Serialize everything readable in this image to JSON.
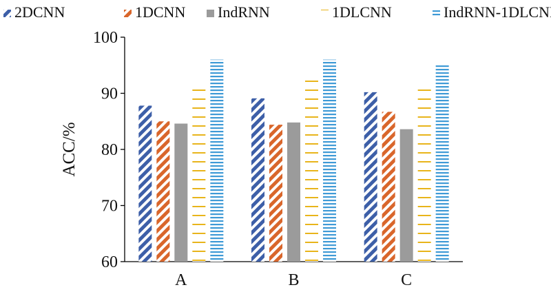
{
  "chart_data": {
    "type": "bar",
    "categories": [
      "A",
      "B",
      "C"
    ],
    "series": [
      {
        "name": "2DCNN",
        "values": [
          87.8,
          89.1,
          90.2
        ],
        "color": "#3d5fa8",
        "pattern": "diagonal-stripes"
      },
      {
        "name": "1DCNN",
        "values": [
          85.0,
          84.4,
          86.7
        ],
        "color": "#d9662b",
        "pattern": "diagonal-stripes"
      },
      {
        "name": "IndRNN",
        "values": [
          84.6,
          84.8,
          83.6
        ],
        "color": "#9b9b9b",
        "pattern": "solid"
      },
      {
        "name": "1DLCNN",
        "values": [
          90.8,
          93.0,
          91.3
        ],
        "color": "#e8b41a",
        "pattern": "grid"
      },
      {
        "name": "IndRNN-1DLCNN",
        "values": [
          96.0,
          96.0,
          95.2
        ],
        "color": "#3e9ad6",
        "pattern": "horizontal-lines"
      }
    ],
    "ylabel": "ACC/%",
    "xlabel": "",
    "ylim": [
      60,
      100
    ],
    "yticks": [
      60,
      70,
      80,
      90,
      100
    ],
    "legend": "top",
    "grid": false
  }
}
